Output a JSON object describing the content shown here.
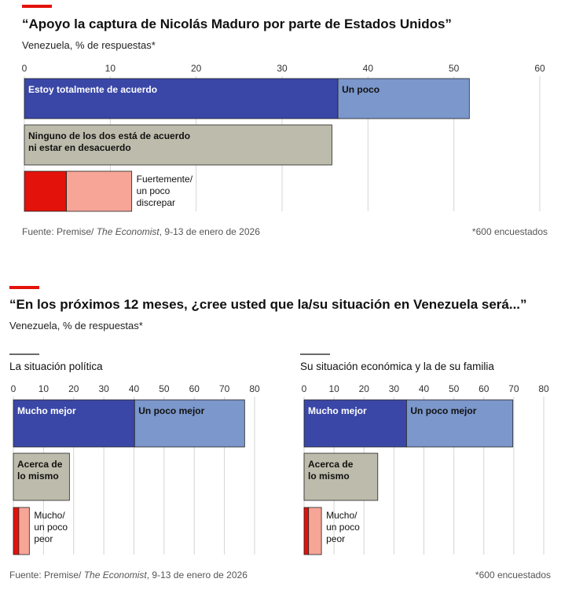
{
  "colors": {
    "accent": "#e3120b",
    "strong_agree": "#3a47a7",
    "some_agree": "#7b97cb",
    "neutral": "#bdbbab",
    "strong_disagree": "#e3120b",
    "some_disagree": "#f6a597",
    "grid": "#d4d4d4"
  },
  "chart1": {
    "title": "“Apoyo la captura de Nicolás Maduro por parte de Estados Unidos”",
    "subtitle": "Venezuela, % de respuestas*",
    "footer": {
      "source_prefix": "Fuente: Premise/ ",
      "source_italic": "The Economist",
      "source_suffix": ", 9-13 de enero de 2026",
      "note": "*600 encuestados"
    }
  },
  "chart2": {
    "title": "“En los próximos 12 meses, ¿cree usted que la/su situación en Venezuela será...”",
    "subtitle": "Venezuela, % de respuestas*",
    "footer": {
      "source_prefix": "Fuente: Premise/ ",
      "source_italic": "The Economist",
      "source_suffix": ", 9-13 de enero de 2026",
      "note": "*600 encuestados"
    }
  },
  "chart_data": [
    {
      "type": "bar",
      "orientation": "horizontal-stacked",
      "title": "“Apoyo la captura de Nicolás Maduro por parte de Estados Unidos”",
      "ylabel": "Venezuela, % de respuestas*",
      "xlim": [
        0,
        60
      ],
      "ticks": [
        0,
        10,
        20,
        30,
        40,
        50,
        60
      ],
      "rows": [
        {
          "segments": [
            {
              "label": "Estoy totalmente de acuerdo",
              "value": 36.5,
              "color": "#3a47a7",
              "label_pos": "inside",
              "text": "light"
            },
            {
              "label": "Un poco",
              "value": 15.3,
              "color": "#7b97cb",
              "label_pos": "inside",
              "text": "dark"
            }
          ]
        },
        {
          "segments": [
            {
              "label": "Ninguno de los dos está de acuerdo|ni estar en desacuerdo",
              "value": 35.8,
              "color": "#bdbbab",
              "label_pos": "inside",
              "text": "dark"
            }
          ]
        },
        {
          "segments": [
            {
              "label": "",
              "value": 4.9,
              "color": "#e3120b"
            },
            {
              "label": "",
              "value": 7.6,
              "color": "#f6a597"
            }
          ],
          "outside_label": "Fuertemente/|un poco|discrepar"
        }
      ]
    },
    {
      "type": "bar",
      "orientation": "horizontal-stacked",
      "title": "La situación política",
      "xlim": [
        0,
        80
      ],
      "ticks": [
        0,
        10,
        20,
        30,
        40,
        50,
        60,
        70,
        80
      ],
      "rows": [
        {
          "segments": [
            {
              "label": "Mucho mejor",
              "value": 40.2,
              "color": "#3a47a7",
              "label_pos": "inside",
              "text": "light"
            },
            {
              "label": "Un poco mejor",
              "value": 36.5,
              "color": "#7b97cb",
              "label_pos": "inside",
              "text": "dark"
            }
          ]
        },
        {
          "segments": [
            {
              "label": "Acerca de|lo mismo",
              "value": 18.6,
              "color": "#bdbbab",
              "label_pos": "inside",
              "text": "dark"
            }
          ]
        },
        {
          "segments": [
            {
              "label": "",
              "value": 1.8,
              "color": "#e3120b"
            },
            {
              "label": "",
              "value": 3.5,
              "color": "#f6a597"
            }
          ],
          "outside_label": "Mucho/|un poco|peor"
        }
      ]
    },
    {
      "type": "bar",
      "orientation": "horizontal-stacked",
      "title": "Su situación económica y la de su familia",
      "xlim": [
        0,
        80
      ],
      "ticks": [
        0,
        10,
        20,
        30,
        40,
        50,
        60,
        70,
        80
      ],
      "rows": [
        {
          "segments": [
            {
              "label": "Mucho mejor",
              "value": 34.2,
              "color": "#3a47a7",
              "label_pos": "inside",
              "text": "light"
            },
            {
              "label": "Un poco mejor",
              "value": 35.5,
              "color": "#7b97cb",
              "label_pos": "inside",
              "text": "dark"
            }
          ]
        },
        {
          "segments": [
            {
              "label": "Acerca de|lo mismo",
              "value": 24.6,
              "color": "#bdbbab",
              "label_pos": "inside",
              "text": "dark"
            }
          ]
        },
        {
          "segments": [
            {
              "label": "",
              "value": 1.5,
              "color": "#e3120b"
            },
            {
              "label": "",
              "value": 4.3,
              "color": "#f6a597"
            }
          ],
          "outside_label": "Mucho/|un poco|peor"
        }
      ]
    }
  ]
}
